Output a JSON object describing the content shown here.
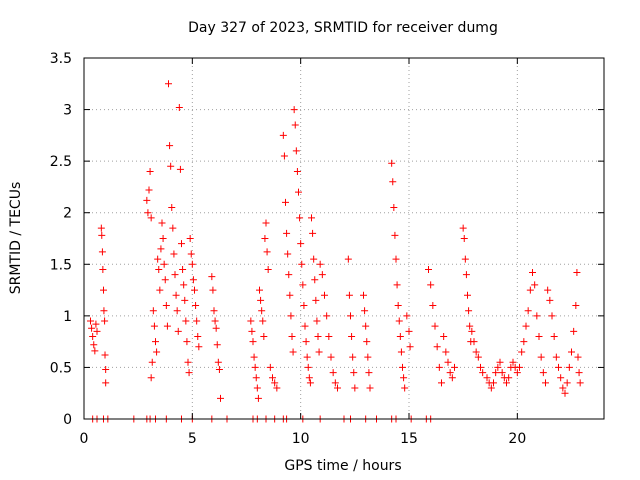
{
  "chart_data": {
    "type": "scatter",
    "title": "Day 327 of 2023, SRMTID for receiver dumg",
    "xlabel": "GPS time / hours",
    "ylabel": "SRMTID / TECUs",
    "xlim": [
      0,
      24
    ],
    "ylim": [
      0,
      3.5
    ],
    "x_ticks": [
      0,
      5,
      10,
      15,
      20
    ],
    "x_tick_labels": [
      "0",
      "5",
      "10",
      "15",
      "20"
    ],
    "y_ticks": [
      0,
      0.5,
      1,
      1.5,
      2,
      2.5,
      3,
      3.5
    ],
    "y_tick_labels": [
      "0",
      "0.5",
      "1",
      "1.5",
      "2",
      "2.5",
      "3",
      "3.5"
    ],
    "grid": true,
    "marker": "+",
    "series": [
      {
        "name": "SRMTID",
        "color": "#ff0000",
        "points": [
          [
            0.3,
            0.95
          ],
          [
            0.35,
            0.88
          ],
          [
            0.4,
            0.8
          ],
          [
            0.45,
            0.72
          ],
          [
            0.5,
            0.66
          ],
          [
            0.55,
            0.92
          ],
          [
            0.6,
            0.85
          ],
          [
            0.8,
            1.85
          ],
          [
            0.82,
            1.78
          ],
          [
            0.85,
            1.62
          ],
          [
            0.87,
            1.45
          ],
          [
            0.9,
            1.25
          ],
          [
            0.92,
            1.05
          ],
          [
            0.95,
            0.95
          ],
          [
            0.97,
            0.62
          ],
          [
            1.0,
            0.48
          ],
          [
            1.0,
            0.35
          ],
          [
            2.9,
            2.12
          ],
          [
            2.95,
            2.0
          ],
          [
            3.0,
            2.22
          ],
          [
            3.05,
            2.4
          ],
          [
            3.1,
            1.95
          ],
          [
            3.1,
            0.4
          ],
          [
            3.15,
            0.55
          ],
          [
            3.2,
            1.05
          ],
          [
            3.25,
            0.9
          ],
          [
            3.3,
            0.75
          ],
          [
            3.35,
            0.65
          ],
          [
            3.4,
            1.55
          ],
          [
            3.45,
            1.45
          ],
          [
            3.5,
            1.25
          ],
          [
            3.55,
            1.65
          ],
          [
            3.6,
            1.9
          ],
          [
            3.65,
            1.75
          ],
          [
            3.7,
            1.5
          ],
          [
            3.75,
            1.35
          ],
          [
            3.8,
            1.1
          ],
          [
            3.85,
            0.9
          ],
          [
            3.9,
            3.25
          ],
          [
            3.95,
            2.65
          ],
          [
            4.0,
            2.45
          ],
          [
            4.05,
            2.05
          ],
          [
            4.1,
            1.85
          ],
          [
            4.15,
            1.6
          ],
          [
            4.2,
            1.4
          ],
          [
            4.25,
            1.2
          ],
          [
            4.3,
            1.05
          ],
          [
            4.35,
            0.85
          ],
          [
            4.4,
            3.02
          ],
          [
            4.45,
            2.42
          ],
          [
            4.5,
            1.7
          ],
          [
            4.55,
            1.45
          ],
          [
            4.6,
            1.3
          ],
          [
            4.65,
            1.15
          ],
          [
            4.7,
            0.95
          ],
          [
            4.75,
            0.75
          ],
          [
            4.8,
            0.55
          ],
          [
            4.85,
            0.45
          ],
          [
            4.9,
            1.75
          ],
          [
            4.95,
            1.6
          ],
          [
            5.0,
            1.5
          ],
          [
            5.05,
            1.35
          ],
          [
            5.1,
            1.25
          ],
          [
            5.15,
            1.1
          ],
          [
            5.2,
            0.95
          ],
          [
            5.25,
            0.8
          ],
          [
            5.3,
            0.7
          ],
          [
            5.9,
            1.38
          ],
          [
            5.95,
            1.25
          ],
          [
            6.0,
            1.05
          ],
          [
            6.05,
            0.95
          ],
          [
            6.1,
            0.88
          ],
          [
            6.15,
            0.72
          ],
          [
            6.2,
            0.55
          ],
          [
            6.25,
            0.48
          ],
          [
            6.3,
            0.2
          ],
          [
            7.7,
            0.95
          ],
          [
            7.75,
            0.85
          ],
          [
            7.8,
            0.75
          ],
          [
            7.85,
            0.6
          ],
          [
            7.9,
            0.5
          ],
          [
            7.95,
            0.4
          ],
          [
            8.0,
            0.3
          ],
          [
            8.05,
            0.2
          ],
          [
            8.1,
            1.25
          ],
          [
            8.15,
            1.15
          ],
          [
            8.2,
            1.05
          ],
          [
            8.25,
            0.95
          ],
          [
            8.3,
            0.8
          ],
          [
            8.35,
            1.75
          ],
          [
            8.4,
            1.9
          ],
          [
            8.45,
            1.62
          ],
          [
            8.5,
            1.45
          ],
          [
            8.6,
            0.5
          ],
          [
            8.7,
            0.4
          ],
          [
            8.8,
            0.35
          ],
          [
            8.9,
            0.3
          ],
          [
            9.2,
            2.75
          ],
          [
            9.25,
            2.55
          ],
          [
            9.3,
            2.1
          ],
          [
            9.35,
            1.8
          ],
          [
            9.4,
            1.6
          ],
          [
            9.45,
            1.4
          ],
          [
            9.5,
            1.2
          ],
          [
            9.55,
            1.0
          ],
          [
            9.6,
            0.8
          ],
          [
            9.65,
            0.65
          ],
          [
            9.7,
            3.0
          ],
          [
            9.75,
            2.85
          ],
          [
            9.8,
            2.6
          ],
          [
            9.85,
            2.4
          ],
          [
            9.9,
            2.2
          ],
          [
            9.95,
            1.95
          ],
          [
            10.0,
            1.7
          ],
          [
            10.05,
            1.5
          ],
          [
            10.1,
            1.3
          ],
          [
            10.15,
            1.1
          ],
          [
            10.2,
            0.9
          ],
          [
            10.25,
            0.75
          ],
          [
            10.3,
            0.6
          ],
          [
            10.35,
            0.5
          ],
          [
            10.4,
            0.4
          ],
          [
            10.45,
            0.35
          ],
          [
            10.5,
            1.95
          ],
          [
            10.55,
            1.8
          ],
          [
            10.6,
            1.55
          ],
          [
            10.65,
            1.35
          ],
          [
            10.7,
            1.15
          ],
          [
            10.75,
            0.95
          ],
          [
            10.8,
            0.8
          ],
          [
            10.85,
            0.65
          ],
          [
            10.9,
            1.5
          ],
          [
            11.0,
            1.4
          ],
          [
            11.1,
            1.2
          ],
          [
            11.2,
            1.0
          ],
          [
            11.3,
            0.8
          ],
          [
            11.4,
            0.6
          ],
          [
            11.5,
            0.45
          ],
          [
            11.6,
            0.35
          ],
          [
            11.7,
            0.3
          ],
          [
            12.2,
            1.55
          ],
          [
            12.25,
            1.2
          ],
          [
            12.3,
            1.0
          ],
          [
            12.35,
            0.8
          ],
          [
            12.4,
            0.6
          ],
          [
            12.45,
            0.45
          ],
          [
            12.5,
            0.3
          ],
          [
            12.9,
            1.2
          ],
          [
            12.95,
            1.05
          ],
          [
            13.0,
            0.9
          ],
          [
            13.05,
            0.75
          ],
          [
            13.1,
            0.6
          ],
          [
            13.15,
            0.45
          ],
          [
            13.2,
            0.3
          ],
          [
            14.2,
            2.48
          ],
          [
            14.25,
            2.3
          ],
          [
            14.3,
            2.05
          ],
          [
            14.35,
            1.78
          ],
          [
            14.4,
            1.55
          ],
          [
            14.45,
            1.3
          ],
          [
            14.5,
            1.1
          ],
          [
            14.55,
            0.95
          ],
          [
            14.6,
            0.8
          ],
          [
            14.65,
            0.65
          ],
          [
            14.7,
            0.5
          ],
          [
            14.75,
            0.4
          ],
          [
            14.8,
            0.3
          ],
          [
            14.9,
            1.0
          ],
          [
            15.0,
            0.85
          ],
          [
            15.05,
            0.7
          ],
          [
            15.9,
            1.45
          ],
          [
            16.0,
            1.3
          ],
          [
            16.1,
            1.1
          ],
          [
            16.2,
            0.9
          ],
          [
            16.3,
            0.7
          ],
          [
            16.4,
            0.5
          ],
          [
            16.5,
            0.35
          ],
          [
            16.6,
            0.8
          ],
          [
            16.7,
            0.65
          ],
          [
            16.8,
            0.55
          ],
          [
            16.9,
            0.45
          ],
          [
            17.0,
            0.4
          ],
          [
            17.1,
            0.5
          ],
          [
            17.5,
            1.85
          ],
          [
            17.55,
            1.75
          ],
          [
            17.6,
            1.55
          ],
          [
            17.65,
            1.4
          ],
          [
            17.7,
            1.2
          ],
          [
            17.75,
            1.05
          ],
          [
            17.8,
            0.9
          ],
          [
            17.85,
            0.75
          ],
          [
            17.9,
            0.85
          ],
          [
            18.0,
            0.75
          ],
          [
            18.1,
            0.65
          ],
          [
            18.2,
            0.6
          ],
          [
            18.3,
            0.5
          ],
          [
            18.4,
            0.45
          ],
          [
            18.6,
            0.4
          ],
          [
            18.7,
            0.35
          ],
          [
            18.8,
            0.3
          ],
          [
            18.9,
            0.35
          ],
          [
            19.0,
            0.45
          ],
          [
            19.1,
            0.5
          ],
          [
            19.2,
            0.55
          ],
          [
            19.3,
            0.45
          ],
          [
            19.4,
            0.4
          ],
          [
            19.5,
            0.35
          ],
          [
            19.6,
            0.4
          ],
          [
            19.7,
            0.5
          ],
          [
            19.8,
            0.55
          ],
          [
            19.9,
            0.5
          ],
          [
            20.0,
            0.45
          ],
          [
            20.1,
            0.5
          ],
          [
            20.2,
            0.65
          ],
          [
            20.3,
            0.75
          ],
          [
            20.4,
            0.9
          ],
          [
            20.5,
            1.05
          ],
          [
            20.6,
            1.25
          ],
          [
            20.7,
            1.42
          ],
          [
            20.8,
            1.3
          ],
          [
            20.9,
            1.0
          ],
          [
            21.0,
            0.8
          ],
          [
            21.1,
            0.6
          ],
          [
            21.2,
            0.45
          ],
          [
            21.3,
            0.35
          ],
          [
            21.4,
            1.25
          ],
          [
            21.5,
            1.15
          ],
          [
            21.6,
            1.0
          ],
          [
            21.7,
            0.8
          ],
          [
            21.8,
            0.6
          ],
          [
            21.9,
            0.5
          ],
          [
            22.0,
            0.4
          ],
          [
            22.1,
            0.3
          ],
          [
            22.2,
            0.25
          ],
          [
            22.3,
            0.35
          ],
          [
            22.4,
            0.5
          ],
          [
            22.5,
            0.65
          ],
          [
            22.6,
            0.85
          ],
          [
            22.7,
            1.1
          ],
          [
            22.75,
            1.42
          ],
          [
            22.8,
            0.6
          ],
          [
            22.85,
            0.45
          ],
          [
            22.9,
            0.35
          ],
          [
            0.4,
            0.0
          ],
          [
            0.6,
            0.0
          ],
          [
            0.9,
            0.0
          ],
          [
            1.1,
            0.0
          ],
          [
            2.3,
            0.0
          ],
          [
            2.9,
            0.0
          ],
          [
            3.05,
            0.0
          ],
          [
            3.3,
            0.0
          ],
          [
            3.8,
            0.0
          ],
          [
            4.5,
            0.0
          ],
          [
            5.0,
            0.0
          ],
          [
            5.9,
            0.0
          ],
          [
            6.6,
            0.0
          ],
          [
            7.8,
            0.0
          ],
          [
            8.0,
            0.0
          ],
          [
            8.4,
            0.0
          ],
          [
            8.8,
            0.0
          ],
          [
            9.2,
            0.0
          ],
          [
            9.35,
            0.0
          ],
          [
            10.1,
            0.0
          ],
          [
            10.9,
            0.0
          ],
          [
            12.0,
            0.0
          ],
          [
            12.3,
            0.0
          ],
          [
            13.0,
            0.0
          ],
          [
            13.5,
            0.0
          ],
          [
            14.2,
            0.0
          ],
          [
            14.4,
            0.0
          ],
          [
            15.1,
            0.0
          ],
          [
            15.8,
            0.0
          ],
          [
            16.0,
            0.0
          ]
        ]
      }
    ]
  }
}
